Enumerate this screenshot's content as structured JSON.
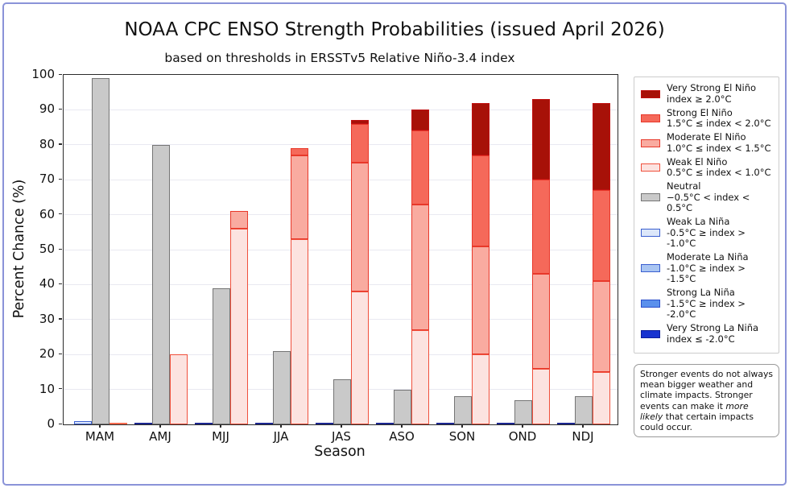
{
  "figure": {
    "title": "NOAA CPC ENSO Strength Probabilities (issued April 2026)",
    "subtitle": "based on thresholds in ERSSTv5 Relative Niño-3.4 index",
    "ylabel": "Percent Chance (%)",
    "xlabel": "Season",
    "frame_color": "#8a93d8"
  },
  "note": {
    "text_before": "Stronger events do not always mean bigger weather and climate impacts. Stronger events can make it ",
    "text_italic": "more likely",
    "text_after": " that certain impacts could occur."
  },
  "legend": [
    {
      "key": "very_strong_el_nino",
      "label": "Very Strong El Niño",
      "threshold": "index ≥ 2.0°C",
      "fill": "#a71108",
      "edge": "#c01010"
    },
    {
      "key": "strong_el_nino",
      "label": "Strong El Niño",
      "threshold": "1.5°C ≤ index < 2.0°C",
      "fill": "#f5695a",
      "edge": "#e8382a"
    },
    {
      "key": "moderate_el_nino",
      "label": "Moderate El Niño",
      "threshold": "1.0°C ≤ index < 1.5°C",
      "fill": "#f9aba0",
      "edge": "#e8382a"
    },
    {
      "key": "weak_el_nino",
      "label": "Weak El Niño",
      "threshold": "0.5°C ≤ index < 1.0°C",
      "fill": "#fce3e0",
      "edge": "#f0503c"
    },
    {
      "key": "neutral",
      "label": "Neutral",
      "threshold": "−0.5°C < index < 0.5°C",
      "fill": "#c9c9c9",
      "edge": "#757575"
    },
    {
      "key": "weak_la_nina",
      "label": "Weak La Niña",
      "threshold": "-0.5°C ≥ index > -1.0°C",
      "fill": "#dce7fa",
      "edge": "#3a5fd0"
    },
    {
      "key": "moderate_la_nina",
      "label": "Moderate La Niña",
      "threshold": "-1.0°C ≥ index > -1.5°C",
      "fill": "#a9c5f2",
      "edge": "#3a5fd0"
    },
    {
      "key": "strong_la_nina",
      "label": "Strong La Niña",
      "threshold": "-1.5°C ≥ index > -2.0°C",
      "fill": "#5a90ec",
      "edge": "#2a4ecb"
    },
    {
      "key": "very_strong_la_nina",
      "label": "Very Strong La Niña",
      "threshold": "index ≤ -2.0°C",
      "fill": "#1733d0",
      "edge": "#0d1f9c"
    }
  ],
  "chart_data": {
    "type": "bar",
    "stacked": true,
    "grouped": true,
    "title": "NOAA CPC ENSO Strength Probabilities (issued April 2026)",
    "xlabel": "Season",
    "ylabel": "Percent Chance (%)",
    "categories": [
      "MAM",
      "AMJ",
      "MJJ",
      "JJA",
      "JAS",
      "ASO",
      "SON",
      "OND",
      "NDJ"
    ],
    "ylim": [
      0,
      100
    ],
    "yticks": [
      0,
      10,
      20,
      30,
      40,
      50,
      60,
      70,
      80,
      90,
      100
    ],
    "grid": "horizontal",
    "legend_position": "right",
    "groups": [
      {
        "name": "La Niña",
        "zero_line_color": "#1b2590",
        "stack": [
          {
            "key": "weak_la_nina",
            "name": "Weak La Niña",
            "values": [
              1,
              0,
              0,
              0,
              0,
              0,
              0,
              0,
              0
            ]
          },
          {
            "key": "moderate_la_nina",
            "name": "Moderate La Niña",
            "values": [
              0,
              0,
              0,
              0,
              0,
              0,
              0,
              0,
              0
            ]
          },
          {
            "key": "strong_la_nina",
            "name": "Strong La Niña",
            "values": [
              0,
              0,
              0,
              0,
              0,
              0,
              0,
              0,
              0
            ]
          },
          {
            "key": "very_strong_la_nina",
            "name": "Very Strong La Niña",
            "values": [
              0,
              0,
              0,
              0,
              0,
              0,
              0,
              0,
              0
            ]
          }
        ]
      },
      {
        "name": "Neutral",
        "zero_line_color": "#757575",
        "stack": [
          {
            "key": "neutral",
            "name": "Neutral",
            "values": [
              99,
              80,
              39,
              21,
              13,
              10,
              8,
              7,
              8
            ]
          }
        ]
      },
      {
        "name": "El Niño",
        "zero_line_color": "#fd6a4f",
        "stack": [
          {
            "key": "weak_el_nino",
            "name": "Weak El Niño",
            "values": [
              0,
              20,
              56,
              53,
              38,
              27,
              20,
              16,
              15
            ]
          },
          {
            "key": "moderate_el_nino",
            "name": "Moderate El Niño",
            "values": [
              0,
              0,
              5,
              24,
              37,
              36,
              31,
              27,
              26
            ]
          },
          {
            "key": "strong_el_nino",
            "name": "Strong El Niño",
            "values": [
              0,
              0,
              0,
              2,
              11,
              21,
              26,
              27,
              26
            ]
          },
          {
            "key": "very_strong_el_nino",
            "name": "Very Strong El Niño",
            "values": [
              0,
              0,
              0,
              0,
              1,
              6,
              15,
              23,
              25
            ]
          }
        ]
      }
    ]
  }
}
